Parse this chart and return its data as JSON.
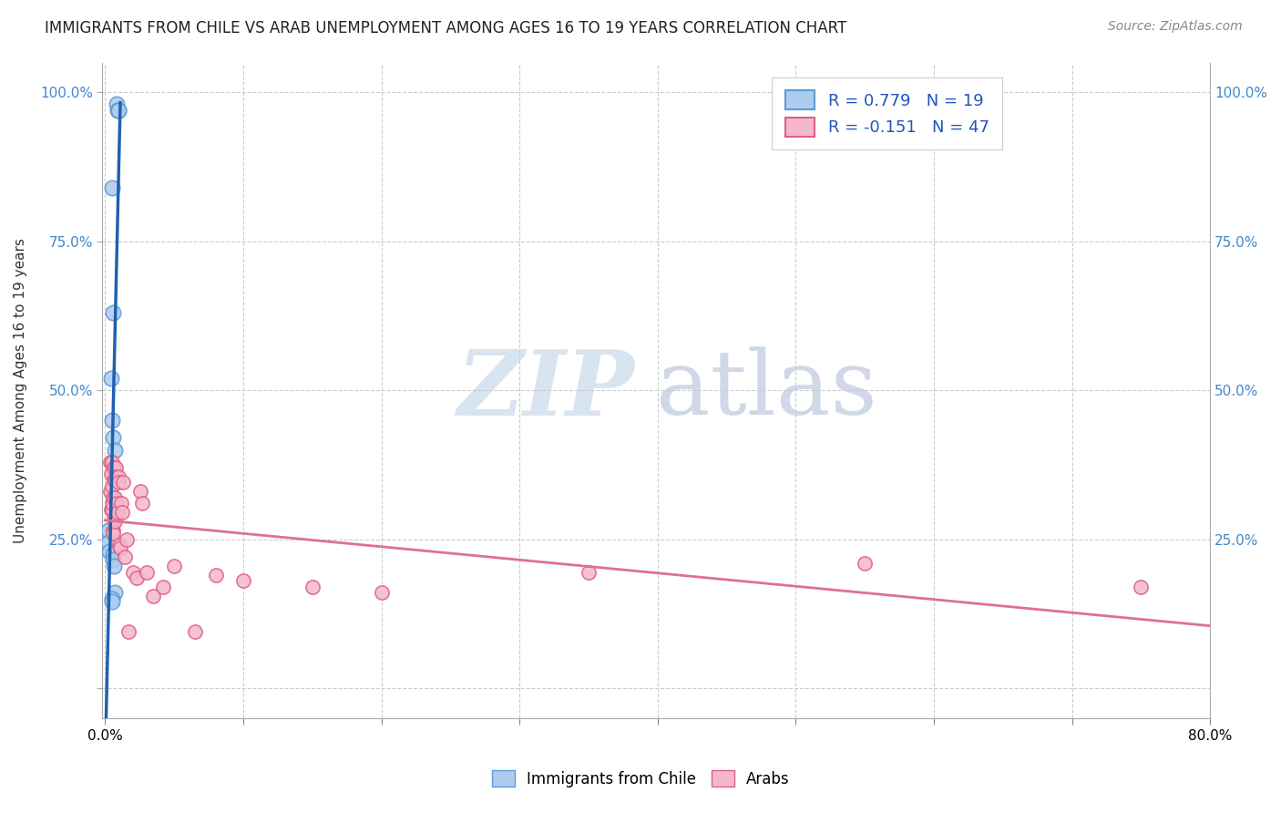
{
  "title": "IMMIGRANTS FROM CHILE VS ARAB UNEMPLOYMENT AMONG AGES 16 TO 19 YEARS CORRELATION CHART",
  "source": "Source: ZipAtlas.com",
  "ylabel": "Unemployment Among Ages 16 to 19 years",
  "xlim": [
    -0.002,
    0.8
  ],
  "ylim": [
    -0.05,
    1.05
  ],
  "ytick_positions": [
    0.0,
    0.25,
    0.5,
    0.75,
    1.0
  ],
  "ytick_labels": [
    "",
    "25.0%",
    "50.0%",
    "75.0%",
    "100.0%"
  ],
  "xtick_positions": [
    0.0,
    0.1,
    0.2,
    0.3,
    0.4,
    0.5,
    0.6,
    0.7,
    0.8
  ],
  "xtick_labels": [
    "0.0%",
    "",
    "",
    "",
    "",
    "",
    "",
    "",
    "80.0%"
  ],
  "chile_color": "#aecbf0",
  "chile_edge_color": "#5b9bd5",
  "arab_color": "#f4b8ce",
  "arab_edge_color": "#e06080",
  "line_chile_color": "#2060b0",
  "line_arab_color": "#e07090",
  "watermark_zip": "ZIP",
  "watermark_atlas": "atlas",
  "chile_x": [
    0.0085,
    0.009,
    0.0095,
    0.01,
    0.005,
    0.006,
    0.0045,
    0.005,
    0.0055,
    0.0025,
    0.0025,
    0.003,
    0.0055,
    0.0058,
    0.0065,
    0.007,
    0.007,
    0.0048,
    0.0052
  ],
  "chile_y": [
    0.98,
    0.97,
    0.97,
    0.97,
    0.84,
    0.63,
    0.52,
    0.45,
    0.42,
    0.265,
    0.245,
    0.23,
    0.225,
    0.215,
    0.205,
    0.4,
    0.16,
    0.15,
    0.145
  ],
  "arab_x": [
    0.0035,
    0.0038,
    0.0042,
    0.0045,
    0.0048,
    0.005,
    0.005,
    0.0052,
    0.0055,
    0.0058,
    0.006,
    0.0062,
    0.0065,
    0.0065,
    0.0068,
    0.007,
    0.0072,
    0.0075,
    0.008,
    0.0085,
    0.009,
    0.0095,
    0.01,
    0.0105,
    0.011,
    0.0115,
    0.012,
    0.013,
    0.014,
    0.0155,
    0.017,
    0.02,
    0.023,
    0.0255,
    0.027,
    0.03,
    0.035,
    0.042,
    0.05,
    0.065,
    0.08,
    0.1,
    0.15,
    0.2,
    0.35,
    0.55,
    0.75
  ],
  "arab_y": [
    0.38,
    0.33,
    0.36,
    0.3,
    0.38,
    0.34,
    0.3,
    0.31,
    0.265,
    0.26,
    0.32,
    0.285,
    0.37,
    0.35,
    0.32,
    0.35,
    0.28,
    0.37,
    0.355,
    0.31,
    0.295,
    0.355,
    0.345,
    0.24,
    0.235,
    0.31,
    0.295,
    0.345,
    0.22,
    0.25,
    0.095,
    0.195,
    0.185,
    0.33,
    0.31,
    0.195,
    0.155,
    0.17,
    0.205,
    0.095,
    0.19,
    0.18,
    0.17,
    0.16,
    0.195,
    0.21,
    0.17
  ]
}
